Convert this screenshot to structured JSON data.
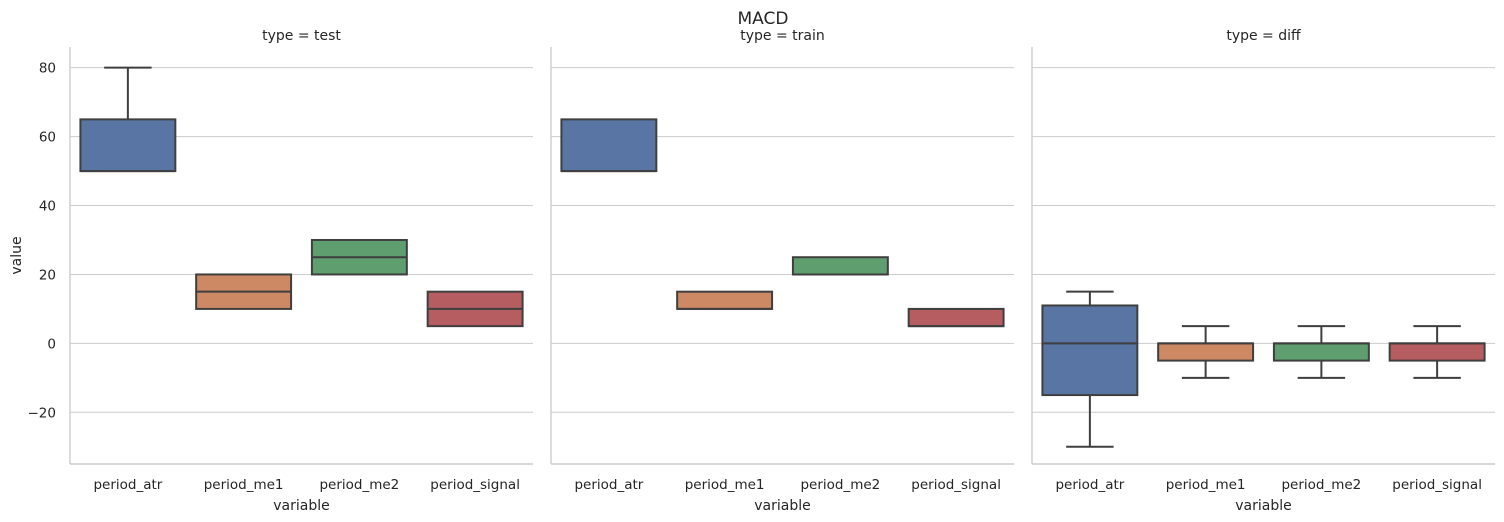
{
  "chart_data": {
    "type": "boxplot",
    "title": "MACD",
    "ylabel": "value",
    "xlabel": "variable",
    "ylim": [
      -35,
      86
    ],
    "yticks": [
      -20,
      0,
      20,
      40,
      60,
      80
    ],
    "ytick_labels": [
      "−20",
      "0",
      "20",
      "40",
      "60",
      "80"
    ],
    "grid": "horizontal",
    "categories": [
      "period_atr",
      "period_me1",
      "period_me2",
      "period_signal"
    ],
    "colors": [
      "#5875a4",
      "#cc8963",
      "#5f9e6e",
      "#b55d60"
    ],
    "edge_color": "#3f3f3f",
    "grid_color": "#cccccc",
    "panels": [
      {
        "title": "type = test",
        "boxes": [
          {
            "whislo": 50,
            "q1": 50,
            "med": 50,
            "q3": 65,
            "whishi": 80
          },
          {
            "whislo": 10,
            "q1": 10,
            "med": 15,
            "q3": 20,
            "whishi": 20
          },
          {
            "whislo": 20,
            "q1": 20,
            "med": 25,
            "q3": 30,
            "whishi": 30
          },
          {
            "whislo": 5,
            "q1": 5,
            "med": 10,
            "q3": 15,
            "whishi": 15
          }
        ]
      },
      {
        "title": "type = train",
        "boxes": [
          {
            "whislo": 50,
            "q1": 50,
            "med": 50,
            "q3": 65,
            "whishi": 65
          },
          {
            "whislo": 10,
            "q1": 10,
            "med": 10,
            "q3": 15,
            "whishi": 15
          },
          {
            "whislo": 20,
            "q1": 20,
            "med": 20,
            "q3": 25,
            "whishi": 25
          },
          {
            "whislo": 5,
            "q1": 5,
            "med": 5,
            "q3": 10,
            "whishi": 10
          }
        ]
      },
      {
        "title": "type = diff",
        "boxes": [
          {
            "whislo": -30,
            "q1": -15,
            "med": 0,
            "q3": 11,
            "whishi": 15
          },
          {
            "whislo": -10,
            "q1": -5,
            "med": 0,
            "q3": 0,
            "whishi": 5
          },
          {
            "whislo": -10,
            "q1": -5,
            "med": 0,
            "q3": 0,
            "whishi": 5
          },
          {
            "whislo": -10,
            "q1": -5,
            "med": 0,
            "q3": 0,
            "whishi": 5
          }
        ]
      }
    ]
  }
}
